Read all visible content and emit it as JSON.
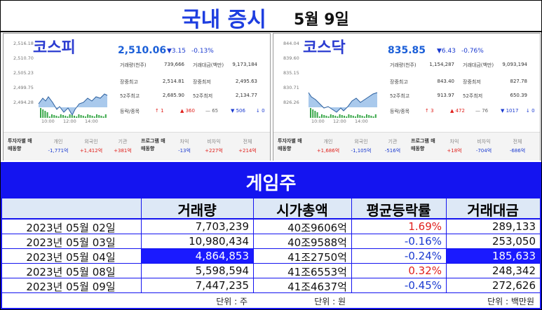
{
  "header": {
    "title": "국내 증시",
    "date": "5월 9일"
  },
  "markets": [
    {
      "name": "코스피",
      "price": "2,510.06",
      "change": "▼3.15",
      "change_pct": "-0.13%",
      "y_labels": [
        "2,516.18",
        "2,510.70",
        "2,505.23",
        "2,499.75",
        "2,494.28"
      ],
      "x_labels": [
        "10:00",
        "12:00",
        "14:00"
      ],
      "stats": [
        [
          {
            "label": "거래량(천주)",
            "value": "739,666"
          },
          {
            "label": "거래대금(백만)",
            "value": "9,173,184"
          }
        ],
        [
          {
            "label": "장중최고",
            "value": "2,514.81"
          },
          {
            "label": "장중최저",
            "value": "2,495.63"
          }
        ],
        [
          {
            "label": "52주최고",
            "value": "2,685.90"
          },
          {
            "label": "52주최저",
            "value": "2,134.77"
          }
        ]
      ],
      "breadth_label": "등락/종목",
      "breadth": [
        "↑ 1",
        "▲ 360",
        "— 65",
        "▼ 506",
        "↓ 0"
      ],
      "investors": {
        "title": "투자자별 매매동향",
        "items": [
          {
            "label": "개인",
            "value": "-1,771억"
          },
          {
            "label": "외국인",
            "value": "+1,412억"
          },
          {
            "label": "기관",
            "value": "+381억"
          }
        ]
      },
      "program": {
        "title": "프로그램 매매동향",
        "items": [
          {
            "label": "차익",
            "value": "-13억"
          },
          {
            "label": "비차익",
            "value": "+227억"
          },
          {
            "label": "전체",
            "value": "+214억"
          }
        ]
      }
    },
    {
      "name": "코스닥",
      "price": "835.85",
      "change": "▼6.43",
      "change_pct": "-0.76%",
      "y_labels": [
        "844.04",
        "839.60",
        "835.15",
        "830.71",
        "826.26"
      ],
      "x_labels": [
        "10:00",
        "12:00",
        "14:00"
      ],
      "stats": [
        [
          {
            "label": "거래량(천주)",
            "value": "1,154,287"
          },
          {
            "label": "거래대금(백만)",
            "value": "9,093,194"
          }
        ],
        [
          {
            "label": "장중최고",
            "value": "843.40"
          },
          {
            "label": "장중최저",
            "value": "827.78"
          }
        ],
        [
          {
            "label": "52주최고",
            "value": "913.97"
          },
          {
            "label": "52주최저",
            "value": "650.39"
          }
        ]
      ],
      "breadth_label": "등락/종목",
      "breadth": [
        "↑ 3",
        "▲ 472",
        "— 76",
        "▼ 1017",
        "↓ 0"
      ],
      "investors": {
        "title": "투자자별 매매동향",
        "items": [
          {
            "label": "개인",
            "value": "+1,686억"
          },
          {
            "label": "외국인",
            "value": "-1,105억"
          },
          {
            "label": "기관",
            "value": "-516억"
          }
        ]
      },
      "program": {
        "title": "프로그램 매매동향",
        "items": [
          {
            "label": "차익",
            "value": "+18억"
          },
          {
            "label": "비차익",
            "value": "-704억"
          },
          {
            "label": "전체",
            "value": "-686억"
          }
        ]
      }
    }
  ],
  "table": {
    "title": "게임주",
    "columns": [
      "거래량",
      "시가총액",
      "평균등락률",
      "거래대금"
    ],
    "rows": [
      [
        "2023년 05월 02일",
        "7,703,239",
        "40조9606억",
        "1.69%",
        "289,133"
      ],
      [
        "2023년 05월 03일",
        "10,980,434",
        "40조9588억",
        "-0.16%",
        "253,050"
      ],
      [
        "2023년 05월 04일",
        "4,864,853",
        "41조2750억",
        "-0.24%",
        "185,633"
      ],
      [
        "2023년 05월 08일",
        "5,598,594",
        "41조6553억",
        "0.32%",
        "248,342"
      ],
      [
        "2023년 05월 09일",
        "7,447,235",
        "41조4637억",
        "-0.45%",
        "272,626"
      ]
    ],
    "highlight": {
      "row": 2,
      "columns": [
        1,
        4
      ]
    },
    "units": [
      "단위 : 주",
      "단위 : 원",
      "단위 : 백만원"
    ]
  }
}
